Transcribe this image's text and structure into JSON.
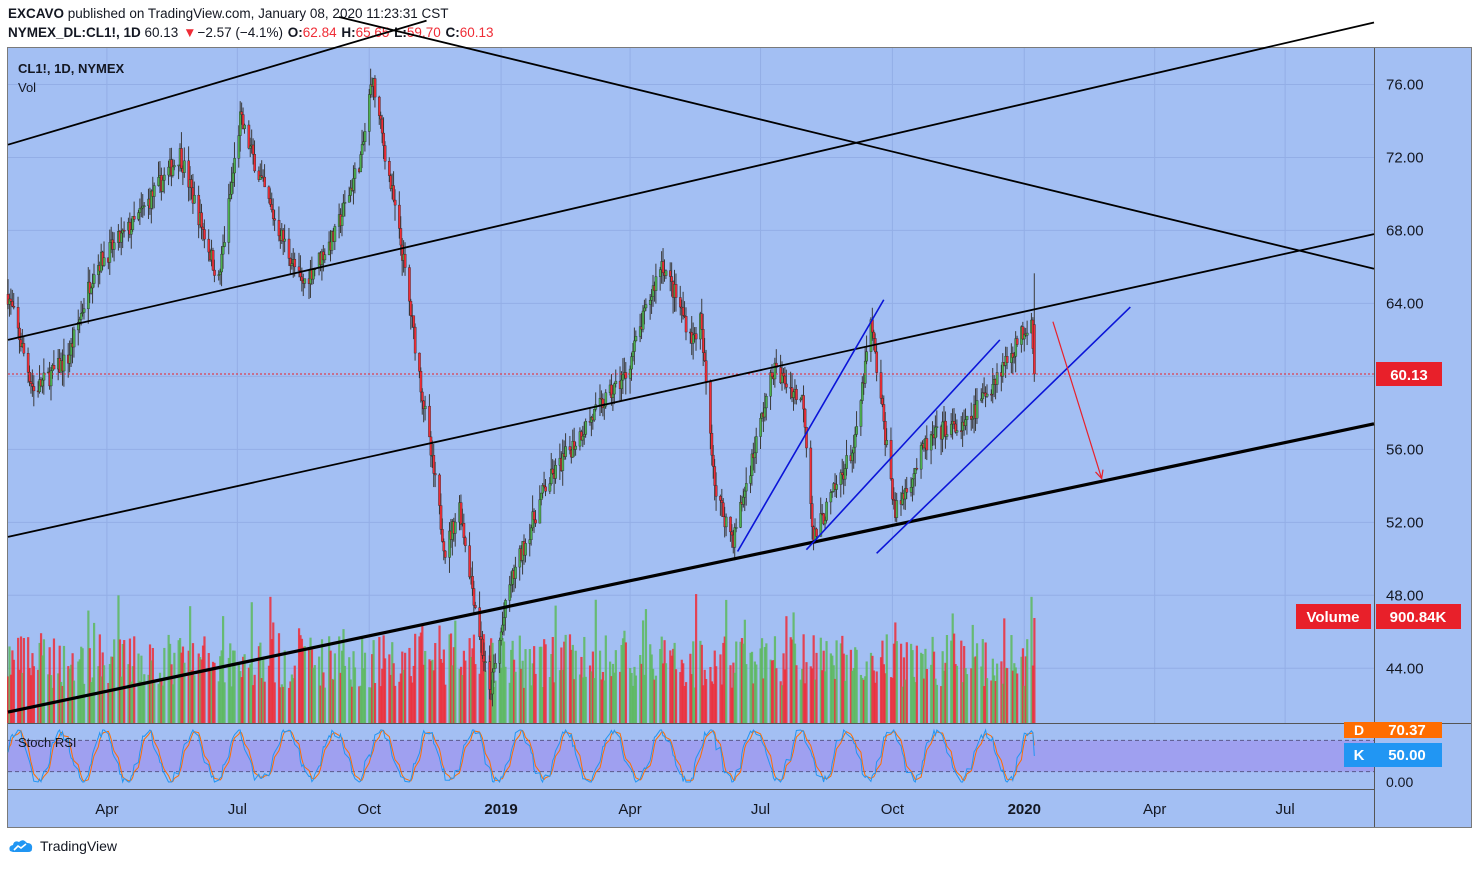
{
  "header": {
    "publisher": "EXCAVO",
    "published_text": " published on TradingView.com, January 08, 2020 11:23:31 CST",
    "symbol": "NYMEX_DL:CL1!, 1D",
    "last": "60.13",
    "arrow": "▼",
    "change": "−2.57 (−4.1%)",
    "o_label": "O:",
    "o_value": "62.84",
    "h_label": "H:",
    "h_value": "65.65",
    "l_label": "L:",
    "l_value": "59.70",
    "c_label": "C:",
    "c_value": "60.13"
  },
  "pane_legend": {
    "symbol": "CL1!, 1D, NYMEX",
    "vol": "Vol"
  },
  "indicator": {
    "name": "Stoch RSI",
    "d_label": "D",
    "d_value": "70.37",
    "k_label": "K",
    "k_value": "50.00"
  },
  "volume_badge": {
    "label": "Volume",
    "value": "900.84K"
  },
  "price_badge": "60.13",
  "footer": {
    "brand": "TradingView"
  },
  "colors": {
    "background": "#a3bff3",
    "up": "#4caf50",
    "down": "#ef2c36",
    "trendline_black": "#000000",
    "channel_blue": "#0a14d8",
    "arrow_red": "#e8202a",
    "k_line": "#2196f3",
    "d_line": "#ff6d00",
    "stoch_band": "#9e9cf0",
    "price_line": "#e8202a"
  },
  "chart_data": {
    "type": "candlestick",
    "symbol": "CL1!",
    "timeframe": "1D",
    "y_axis": {
      "ticks": [
        76,
        72,
        68,
        64,
        60,
        56,
        52,
        48,
        44
      ],
      "tick_labels": [
        "76.00",
        "72.00",
        "68.00",
        "64.00",
        "60.00",
        "56.00",
        "52.00",
        "48.00",
        "44.00"
      ],
      "ylim": [
        41,
        78
      ]
    },
    "x_axis": {
      "tick_labels": [
        "Apr",
        "Jul",
        "Oct",
        "2019",
        "Apr",
        "Jul",
        "Oct",
        "2020",
        "Apr",
        "Jul"
      ],
      "xlim": [
        "2018-01-22",
        "2020-09-01"
      ]
    },
    "last_price": 60.13,
    "price_anchors": [
      [
        "2018-01-22",
        64.5
      ],
      [
        "2018-02-09",
        59.2
      ],
      [
        "2018-03-05",
        61.0
      ],
      [
        "2018-03-23",
        65.9
      ],
      [
        "2018-04-20",
        68.4
      ],
      [
        "2018-05-22",
        72.2
      ],
      [
        "2018-06-18",
        65.2
      ],
      [
        "2018-07-03",
        74.1
      ],
      [
        "2018-07-25",
        69.0
      ],
      [
        "2018-08-15",
        65.0
      ],
      [
        "2018-09-07",
        67.7
      ],
      [
        "2018-09-26",
        72.2
      ],
      [
        "2018-10-03",
        76.4
      ],
      [
        "2018-10-24",
        66.8
      ],
      [
        "2018-11-13",
        55.7
      ],
      [
        "2018-11-23",
        50.4
      ],
      [
        "2018-12-03",
        52.9
      ],
      [
        "2018-12-24",
        42.5
      ],
      [
        "2019-01-07",
        48.5
      ],
      [
        "2019-01-31",
        53.8
      ],
      [
        "2019-02-28",
        57.2
      ],
      [
        "2019-03-29",
        60.1
      ],
      [
        "2019-04-23",
        66.3
      ],
      [
        "2019-05-15",
        62.0
      ],
      [
        "2019-05-20",
        63.1
      ],
      [
        "2019-05-31",
        53.5
      ],
      [
        "2019-06-12",
        51.1
      ],
      [
        "2019-07-10",
        60.4
      ],
      [
        "2019-07-31",
        58.6
      ],
      [
        "2019-08-07",
        51.1
      ],
      [
        "2019-09-05",
        56.3
      ],
      [
        "2019-09-16",
        62.9
      ],
      [
        "2019-10-03",
        52.5
      ],
      [
        "2019-10-24",
        56.2
      ],
      [
        "2019-11-07",
        57.2
      ],
      [
        "2019-11-20",
        57.1
      ],
      [
        "2019-12-06",
        59.2
      ],
      [
        "2019-12-26",
        61.7
      ],
      [
        "2020-01-06",
        63.3
      ],
      [
        "2020-01-08",
        60.13
      ]
    ],
    "volume": {
      "last": "900.84K"
    },
    "stoch_rsi": {
      "k": 50.0,
      "d": 70.37,
      "bands": [
        80,
        20
      ]
    },
    "trendlines": [
      {
        "color": "black",
        "from": [
          "2018-01-22",
          72.7
        ],
        "to": [
          "2018-11-10",
          79.5
        ]
      },
      {
        "color": "black",
        "from": [
          "2018-01-22",
          62.0
        ],
        "to": [
          "2020-09-01",
          79.4
        ]
      },
      {
        "color": "black",
        "from": [
          "2018-01-22",
          51.2
        ],
        "to": [
          "2020-09-01",
          67.8
        ]
      },
      {
        "color": "black",
        "from": [
          "2018-09-10",
          79.7
        ],
        "to": [
          "2020-09-01",
          65.9
        ]
      },
      {
        "color": "black",
        "width": "bold",
        "from": [
          "2018-01-22",
          41.6
        ],
        "to": [
          "2020-09-01",
          57.4
        ]
      },
      {
        "color": "blue",
        "from": [
          "2019-06-15",
          50.4
        ],
        "to": [
          "2019-09-25",
          64.2
        ]
      },
      {
        "color": "blue",
        "from": [
          "2019-08-02",
          50.5
        ],
        "to": [
          "2019-12-15",
          62.0
        ]
      },
      {
        "color": "blue",
        "from": [
          "2019-09-20",
          50.3
        ],
        "to": [
          "2020-03-15",
          63.8
        ]
      }
    ],
    "annotations": [
      {
        "type": "arrow",
        "color": "red",
        "from": [
          "2020-01-21",
          63.0
        ],
        "to": [
          "2020-02-24",
          54.4
        ]
      }
    ]
  }
}
